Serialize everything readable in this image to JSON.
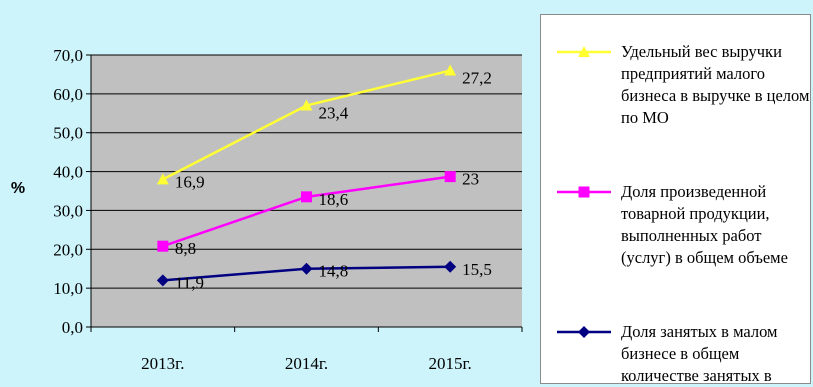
{
  "colors": {
    "background": "#cdf3fb",
    "plot_area": "#c0c0c0",
    "series": [
      "#ffff33",
      "#ff00ff",
      "#000080"
    ]
  },
  "chart_data": {
    "type": "line",
    "categories": [
      "2013г.",
      "2014г.",
      "2015г."
    ],
    "ylabel": "%",
    "ylim": [
      0,
      70
    ],
    "yticks": [
      "0,0",
      "10,0",
      "20,0",
      "30,0",
      "40,0",
      "50,0",
      "60,0",
      "70,0"
    ],
    "grid": true,
    "legend_position": "right",
    "series": [
      {
        "name": "Удельный вес выручки предприятий малого бизнеса в выручке в целом по МО",
        "marker": "triangle",
        "values": [
          38,
          57,
          66
        ],
        "labels": [
          "16,9",
          "23,4",
          "27,2"
        ]
      },
      {
        "name": "Доля произведенной товарной продукции, выполненных работ (услуг) в общем объеме",
        "marker": "square",
        "values": [
          20.8,
          33.5,
          38.7
        ],
        "labels": [
          "8,8",
          "18,6",
          "23"
        ]
      },
      {
        "name": "Доля занятых в малом бизнесе в общем количестве занятых в",
        "marker": "diamond",
        "values": [
          12,
          15,
          15.5
        ],
        "labels": [
          "11,9",
          "14,8",
          "15,5"
        ]
      }
    ]
  }
}
